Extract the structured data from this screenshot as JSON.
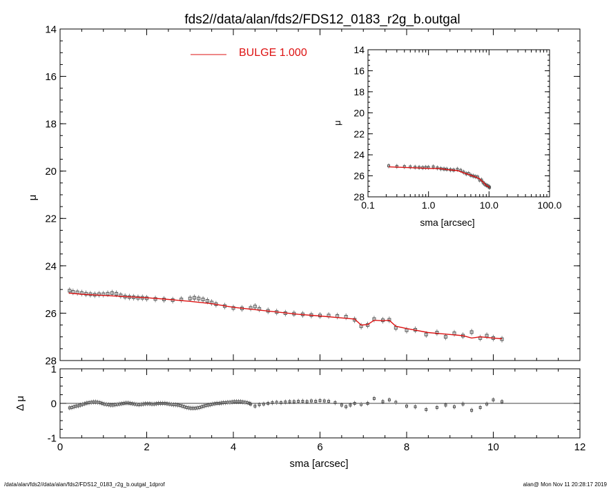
{
  "title": "fds2//data/alan/fds2/FDS12_0183_r2g_b.outgal",
  "footer_left": "/data/alan/fds2//data/alan/fds2/FDS12_0183_r2g_b.outgal_1dprof",
  "footer_right": "alan@  Mon Nov 11 20:28:17 2019",
  "colors": {
    "model": "#dd1111",
    "data": "#555555",
    "axes": "#000000"
  },
  "chart_data": [
    {
      "id": "main-profile",
      "type": "scatter",
      "ylabel": "μ",
      "xlim": [
        0,
        12
      ],
      "ylim": [
        28,
        14
      ],
      "y_inverted": true,
      "xticks": [
        0,
        2,
        4,
        6,
        8,
        10,
        12
      ],
      "yticks": [
        14,
        16,
        18,
        20,
        22,
        24,
        26,
        28
      ],
      "legend": {
        "position": "top-center",
        "label": "BULGE  1.000",
        "color": "#dd1111"
      },
      "series": [
        {
          "name": "BULGE  1.000",
          "style": "line",
          "x": [
            0.2,
            0.5,
            1.0,
            1.5,
            2.0,
            2.5,
            3.0,
            3.5,
            4.0,
            4.5,
            5.0,
            5.5,
            6.0,
            6.5,
            6.8,
            6.95,
            7.1,
            7.25,
            7.45,
            7.6,
            7.75,
            8.0,
            8.5,
            9.0,
            9.3,
            9.5,
            9.7,
            10.0,
            10.2
          ],
          "y": [
            25.15,
            25.2,
            25.25,
            25.3,
            25.35,
            25.42,
            25.5,
            25.6,
            25.75,
            25.85,
            25.95,
            26.05,
            26.12,
            26.2,
            26.25,
            26.5,
            26.48,
            26.3,
            26.32,
            26.3,
            26.55,
            26.65,
            26.82,
            26.9,
            26.95,
            27.05,
            27.0,
            27.05,
            27.08
          ]
        },
        {
          "name": "",
          "style": "markers",
          "x": [
            0.22,
            0.3,
            0.4,
            0.5,
            0.6,
            0.7,
            0.8,
            0.9,
            1.0,
            1.1,
            1.2,
            1.3,
            1.4,
            1.5,
            1.6,
            1.7,
            1.8,
            1.9,
            2.0,
            2.2,
            2.4,
            2.6,
            2.8,
            3.0,
            3.1,
            3.2,
            3.3,
            3.4,
            3.5,
            3.6,
            3.8,
            4.0,
            4.2,
            4.4,
            4.5,
            4.6,
            4.8,
            5.0,
            5.2,
            5.4,
            5.6,
            5.8,
            6.0,
            6.2,
            6.4,
            6.6,
            6.8,
            6.95,
            7.1,
            7.25,
            7.45,
            7.6,
            7.75,
            8.0,
            8.2,
            8.45,
            8.7,
            8.9,
            9.1,
            9.3,
            9.5,
            9.7,
            9.85,
            10.0,
            10.2
          ],
          "y": [
            25.05,
            25.1,
            25.12,
            25.15,
            25.18,
            25.2,
            25.22,
            25.2,
            25.2,
            25.18,
            25.15,
            25.18,
            25.25,
            25.3,
            25.32,
            25.33,
            25.35,
            25.35,
            25.37,
            25.4,
            25.42,
            25.45,
            25.42,
            25.38,
            25.35,
            25.38,
            25.42,
            25.48,
            25.55,
            25.62,
            25.7,
            25.78,
            25.8,
            25.78,
            25.72,
            25.82,
            25.9,
            25.95,
            26.0,
            26.02,
            26.05,
            26.08,
            26.1,
            26.1,
            26.12,
            26.15,
            26.28,
            26.55,
            26.5,
            26.25,
            26.3,
            26.28,
            26.62,
            26.72,
            26.7,
            26.9,
            26.82,
            27.0,
            26.85,
            26.95,
            26.8,
            27.05,
            26.95,
            27.05,
            27.1
          ]
        }
      ]
    },
    {
      "id": "inset-profile",
      "type": "scatter",
      "xlabel": "sma [arcsec]",
      "ylabel": "μ",
      "x_log": true,
      "xlim": [
        0.1,
        100
      ],
      "ylim": [
        28,
        14
      ],
      "y_inverted": true,
      "xticks": [
        0.1,
        1.0,
        10.0,
        100.0
      ],
      "xtick_labels": [
        "0.1",
        "1.0",
        "10.0",
        "100.0"
      ],
      "yticks": [
        14,
        16,
        18,
        20,
        22,
        24,
        26,
        28
      ],
      "series": [
        {
          "name": "",
          "style": "line",
          "x": [
            0.22,
            0.4,
            0.7,
            1.0,
            1.5,
            2.0,
            3.0,
            4.0,
            5.0,
            6.0,
            7.0,
            8.0,
            9.0,
            10.2
          ],
          "y": [
            25.15,
            25.2,
            25.25,
            25.3,
            25.3,
            25.4,
            25.5,
            25.75,
            25.95,
            26.1,
            26.3,
            26.6,
            26.9,
            27.1
          ]
        },
        {
          "name": "",
          "style": "markers",
          "x": [
            0.22,
            0.3,
            0.4,
            0.5,
            0.6,
            0.7,
            0.8,
            0.9,
            1.0,
            1.2,
            1.4,
            1.6,
            1.8,
            2.0,
            2.3,
            2.6,
            3.0,
            3.4,
            3.8,
            4.2,
            4.6,
            5.0,
            5.5,
            6.0,
            6.5,
            7.0,
            7.5,
            8.0,
            8.5,
            9.0,
            9.5,
            10.0,
            10.2
          ],
          "y": [
            25.05,
            25.1,
            25.12,
            25.15,
            25.18,
            25.2,
            25.22,
            25.2,
            25.2,
            25.15,
            25.25,
            25.32,
            25.35,
            25.37,
            25.42,
            25.45,
            25.38,
            25.48,
            25.65,
            25.8,
            25.78,
            25.95,
            26.02,
            26.08,
            26.12,
            26.4,
            26.4,
            26.65,
            26.8,
            26.9,
            26.95,
            27.05,
            27.1
          ]
        }
      ]
    },
    {
      "id": "residual",
      "type": "scatter",
      "xlabel": "sma [arcsec]",
      "ylabel": "Δ μ",
      "xlim": [
        0,
        12
      ],
      "ylim": [
        -1,
        1
      ],
      "xticks": [
        0,
        2,
        4,
        6,
        8,
        10,
        12
      ],
      "yticks": [
        -1,
        0,
        1
      ],
      "zero_line": true,
      "series": [
        {
          "name": "",
          "style": "markers",
          "x": [
            0.22,
            0.27,
            0.32,
            0.37,
            0.42,
            0.47,
            0.52,
            0.57,
            0.62,
            0.67,
            0.72,
            0.77,
            0.82,
            0.87,
            0.92,
            0.97,
            1.02,
            1.07,
            1.12,
            1.17,
            1.22,
            1.27,
            1.32,
            1.37,
            1.42,
            1.47,
            1.52,
            1.57,
            1.62,
            1.67,
            1.72,
            1.77,
            1.82,
            1.87,
            1.92,
            1.97,
            2.02,
            2.07,
            2.12,
            2.17,
            2.22,
            2.27,
            2.32,
            2.37,
            2.42,
            2.47,
            2.52,
            2.57,
            2.62,
            2.67,
            2.72,
            2.77,
            2.82,
            2.87,
            2.92,
            2.97,
            3.02,
            3.07,
            3.12,
            3.17,
            3.22,
            3.27,
            3.32,
            3.37,
            3.42,
            3.47,
            3.52,
            3.57,
            3.62,
            3.67,
            3.72,
            3.77,
            3.82,
            3.87,
            3.92,
            3.97,
            4.02,
            4.07,
            4.12,
            4.17,
            4.22,
            4.27,
            4.32,
            4.37,
            4.4,
            4.5,
            4.6,
            4.7,
            4.8,
            4.9,
            5.0,
            5.1,
            5.2,
            5.3,
            5.4,
            5.5,
            5.6,
            5.7,
            5.8,
            5.9,
            6.0,
            6.1,
            6.2,
            6.35,
            6.5,
            6.6,
            6.7,
            6.8,
            6.95,
            7.1,
            7.25,
            7.45,
            7.6,
            7.75,
            8.0,
            8.2,
            8.45,
            8.7,
            8.9,
            9.1,
            9.3,
            9.5,
            9.7,
            9.85,
            10.0,
            10.2
          ],
          "y": [
            -0.13,
            -0.12,
            -0.1,
            -0.08,
            -0.07,
            -0.05,
            -0.03,
            -0.01,
            0.01,
            0.02,
            0.03,
            0.04,
            0.04,
            0.03,
            0.02,
            0.0,
            -0.02,
            -0.03,
            -0.04,
            -0.05,
            -0.05,
            -0.04,
            -0.03,
            -0.02,
            -0.01,
            0.0,
            0.01,
            0.01,
            0.0,
            -0.01,
            -0.02,
            -0.03,
            -0.04,
            -0.03,
            -0.02,
            -0.01,
            -0.01,
            -0.01,
            -0.02,
            -0.02,
            -0.01,
            0.0,
            0.0,
            0.0,
            0.0,
            -0.01,
            -0.02,
            -0.03,
            -0.04,
            -0.04,
            -0.05,
            -0.06,
            -0.08,
            -0.1,
            -0.12,
            -0.13,
            -0.14,
            -0.14,
            -0.14,
            -0.13,
            -0.12,
            -0.1,
            -0.08,
            -0.06,
            -0.05,
            -0.04,
            -0.02,
            -0.01,
            0.0,
            0.0,
            0.01,
            0.02,
            0.02,
            0.03,
            0.03,
            0.04,
            0.05,
            0.05,
            0.05,
            0.05,
            0.04,
            0.03,
            0.02,
            0.0,
            -0.02,
            -0.08,
            -0.04,
            -0.02,
            0.0,
            0.02,
            0.03,
            0.02,
            0.04,
            0.05,
            0.05,
            0.06,
            0.06,
            0.05,
            0.07,
            0.06,
            0.08,
            0.07,
            0.06,
            0.02,
            -0.05,
            -0.1,
            -0.05,
            0.0,
            -0.03,
            0.0,
            0.14,
            0.05,
            0.1,
            0.03,
            -0.08,
            -0.1,
            -0.18,
            -0.12,
            -0.05,
            -0.1,
            -0.02,
            -0.2,
            -0.12,
            -0.02,
            0.1,
            0.05
          ]
        }
      ]
    }
  ]
}
